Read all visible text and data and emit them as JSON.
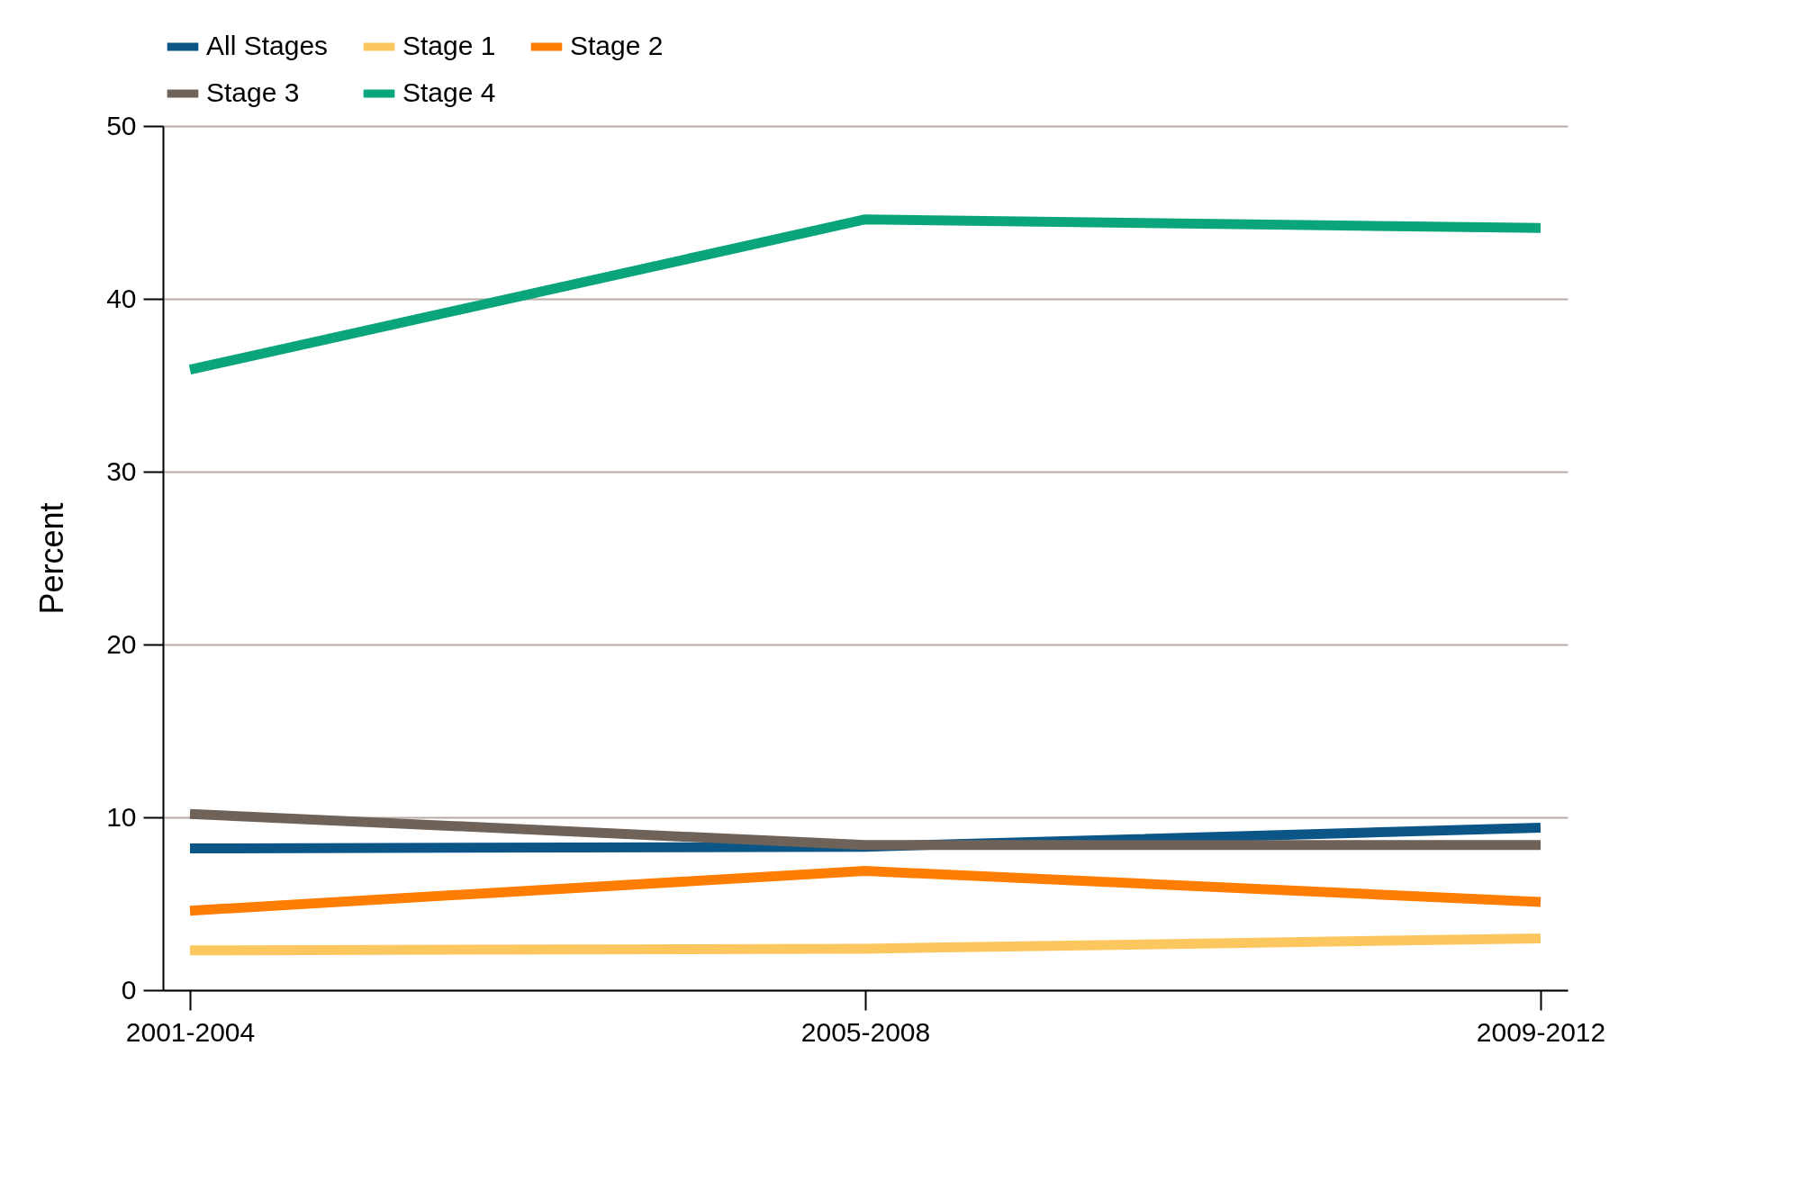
{
  "chart_data": {
    "type": "line",
    "ylabel": "Percent",
    "categories": [
      "2001-2004",
      "2005-2008",
      "2009-2012"
    ],
    "series": [
      {
        "name": "All Stages",
        "color": "#0b5587",
        "values": [
          8.2,
          8.3,
          9.4
        ]
      },
      {
        "name": "Stage 1",
        "color": "#fdc75f",
        "values": [
          2.3,
          2.4,
          3.0
        ]
      },
      {
        "name": "Stage 2",
        "color": "#ff7d00",
        "values": [
          4.6,
          6.9,
          5.1
        ]
      },
      {
        "name": "Stage 3",
        "color": "#6e6259",
        "values": [
          10.2,
          8.4,
          8.4
        ]
      },
      {
        "name": "Stage 4",
        "color": "#0aa57a",
        "values": [
          35.9,
          44.6,
          44.1
        ]
      }
    ],
    "ylim": [
      0,
      50
    ],
    "yticks": [
      0,
      10,
      20,
      30,
      40,
      50
    ],
    "grid": "y",
    "legend": "top",
    "marker": "none",
    "line_style": "solid"
  }
}
